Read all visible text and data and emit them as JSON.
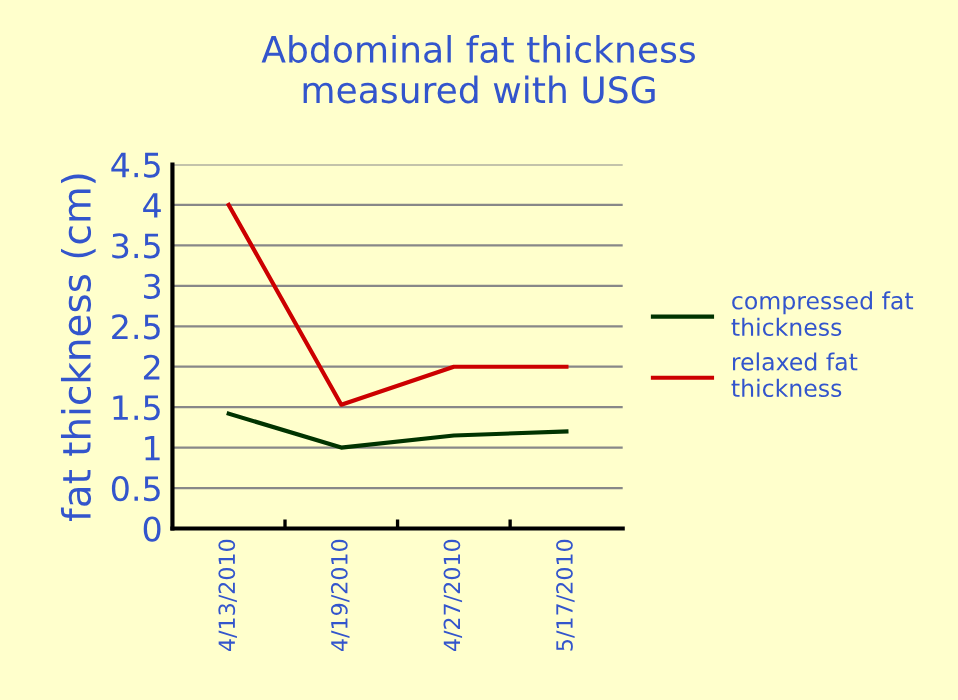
{
  "chart_data": {
    "type": "line",
    "title": "Abdominal fat thickness\nmeasured with USG",
    "ylabel": "fat thickness (cm)",
    "categories": [
      "4/13/2010",
      "4/19/2010",
      "4/27/2010",
      "5/17/2010"
    ],
    "series": [
      {
        "name": "compressed fat\nthickness",
        "color": "#003300",
        "values": [
          1.42,
          1.0,
          1.15,
          1.2
        ]
      },
      {
        "name": "relaxed fat\nthickness",
        "color": "#cc0000",
        "values": [
          4.0,
          1.53,
          2.0,
          2.0
        ]
      }
    ],
    "ylim": [
      0,
      4.5
    ],
    "yticks": [
      0,
      0.5,
      1,
      1.5,
      2,
      2.5,
      3,
      3.5,
      4,
      4.5
    ],
    "grid": "y",
    "legend": "right",
    "marker": "none"
  }
}
